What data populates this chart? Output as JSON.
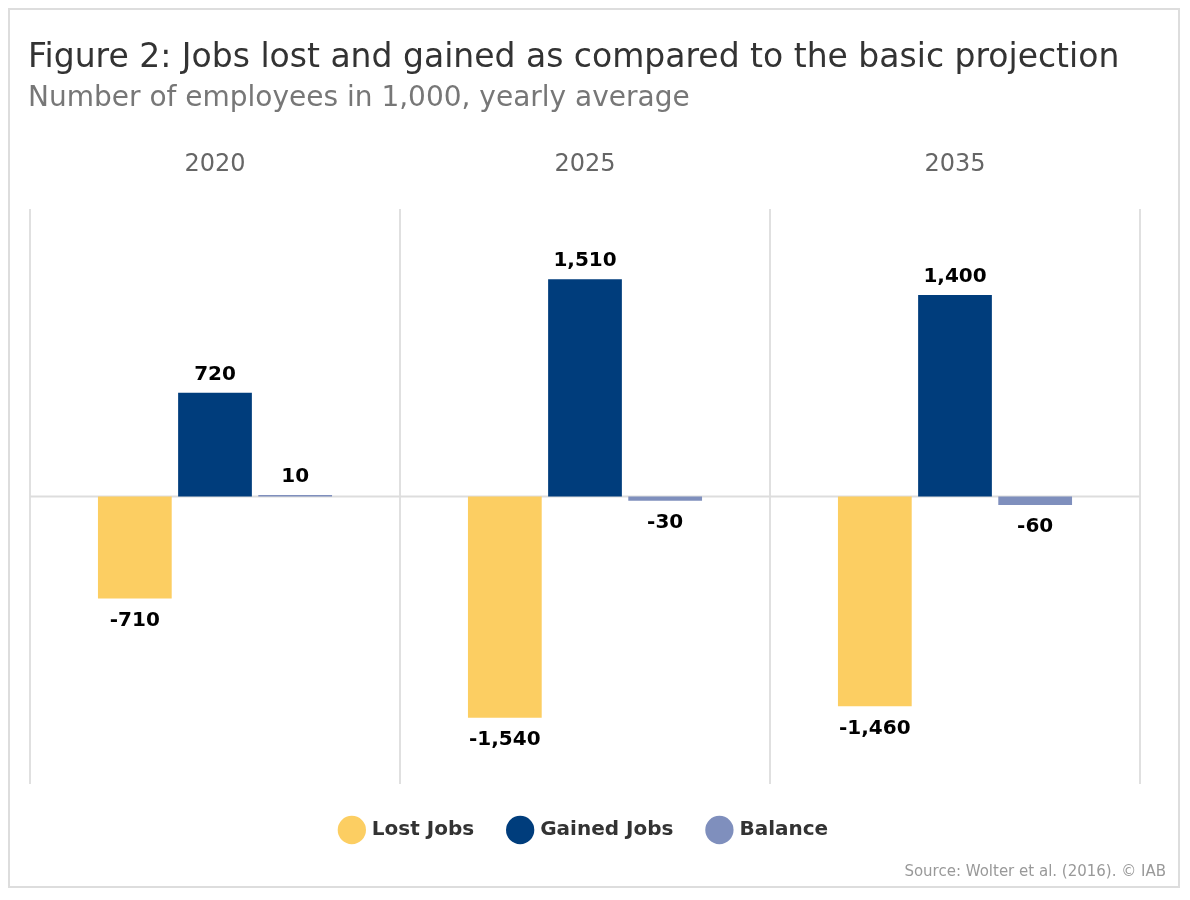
{
  "chart_data": {
    "type": "bar",
    "title": "Figure 2: Jobs lost and gained as compared to the basic projection",
    "subtitle": "Number of employees in 1,000, yearly average",
    "categories": [
      "2020",
      "2025",
      "2035"
    ],
    "series": [
      {
        "name": "Lost Jobs",
        "color": "#fcce62",
        "values": [
          -710,
          -1540,
          -1460
        ],
        "value_labels": [
          "-710",
          "-1,540",
          "-1,460"
        ]
      },
      {
        "name": "Gained Jobs",
        "color": "#003d7c",
        "values": [
          720,
          1510,
          1400
        ],
        "value_labels": [
          "720",
          "1,510",
          "1,400"
        ]
      },
      {
        "name": "Balance",
        "color": "#7f8fbd",
        "values": [
          10,
          -30,
          -60
        ],
        "value_labels": [
          "10",
          "-30",
          "-60"
        ]
      }
    ],
    "grid": "x",
    "legend": "bottom",
    "ref_lines": [
      {
        "axis": "y",
        "value": 0,
        "color": "#dddddd"
      }
    ],
    "annotations": [
      "Source: Wolter et al. (2016). © IAB"
    ]
  }
}
